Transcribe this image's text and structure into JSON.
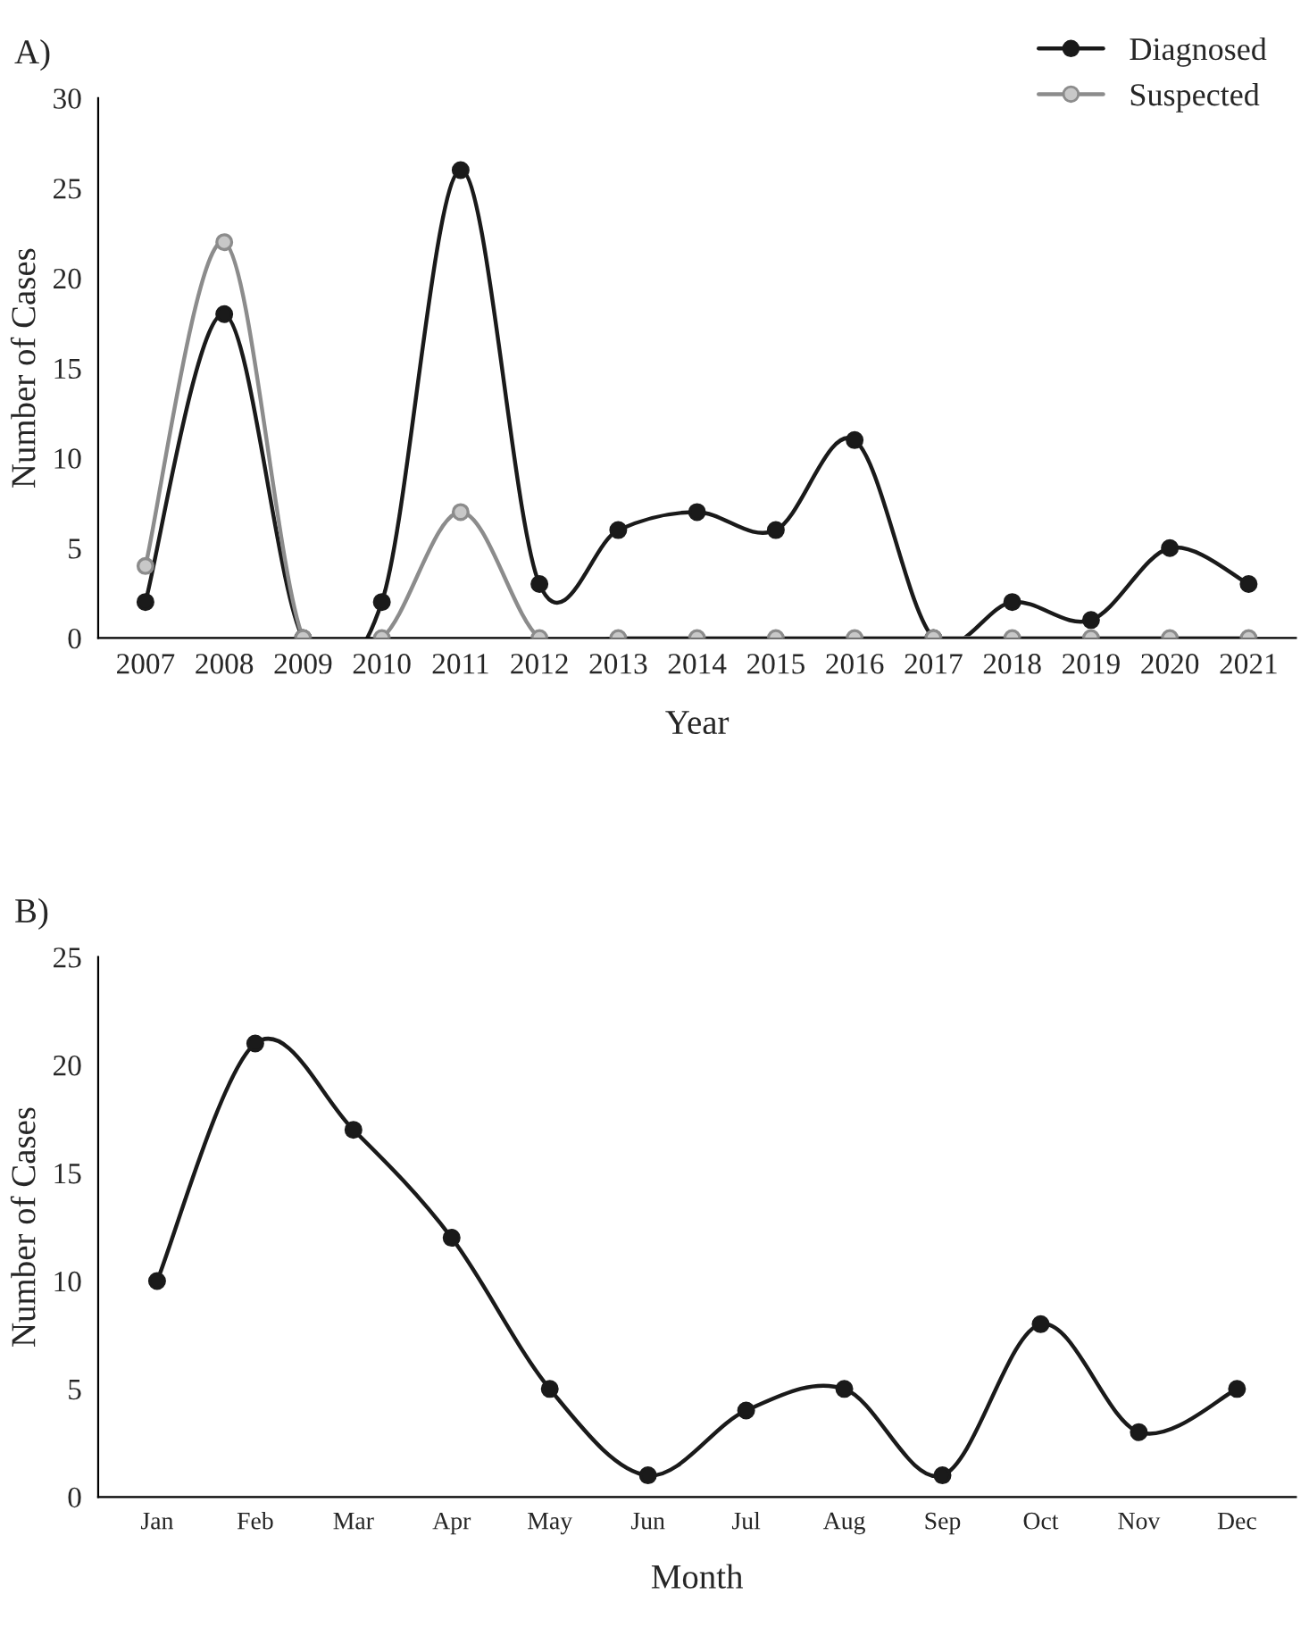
{
  "chart_data": [
    {
      "type": "line",
      "title": "A)",
      "xlabel": "Year",
      "ylabel": "Number of Cases",
      "categories": [
        "2007",
        "2008",
        "2009",
        "2010",
        "2011",
        "2012",
        "2013",
        "2014",
        "2015",
        "2016",
        "2017",
        "2018",
        "2019",
        "2020",
        "2021"
      ],
      "series": [
        {
          "name": "Diagnosed",
          "color": "#1a1a1a",
          "values": [
            2,
            18,
            0,
            2,
            26,
            3,
            6,
            7,
            6,
            11,
            0,
            2,
            1,
            5,
            3
          ]
        },
        {
          "name": "Suspected",
          "color": "#8c8c8c",
          "values": [
            4,
            22,
            0,
            0,
            7,
            0,
            0,
            0,
            0,
            0,
            0,
            0,
            0,
            0,
            0
          ]
        }
      ],
      "ylim": [
        0,
        30
      ],
      "yticks": [
        0,
        5,
        10,
        15,
        20,
        25,
        30
      ],
      "grid": false,
      "legend": "top right",
      "marker": "circle",
      "line_style": "solid"
    },
    {
      "type": "line",
      "title": "B)",
      "xlabel": "Month",
      "ylabel": "Number of Cases",
      "categories": [
        "Jan",
        "Feb",
        "Mar",
        "Apr",
        "May",
        "Jun",
        "Jul",
        "Aug",
        "Sep",
        "Oct",
        "Nov",
        "Dec"
      ],
      "series": [
        {
          "color": "#1a1a1a",
          "values": [
            10,
            21,
            17,
            12,
            5,
            1,
            4,
            5,
            1,
            8,
            3,
            5
          ]
        }
      ],
      "ylim": [
        0,
        25
      ],
      "yticks": [
        0,
        5,
        10,
        15,
        20,
        25
      ],
      "grid": false,
      "legend": false,
      "marker": "circle",
      "line_style": "solid"
    }
  ]
}
